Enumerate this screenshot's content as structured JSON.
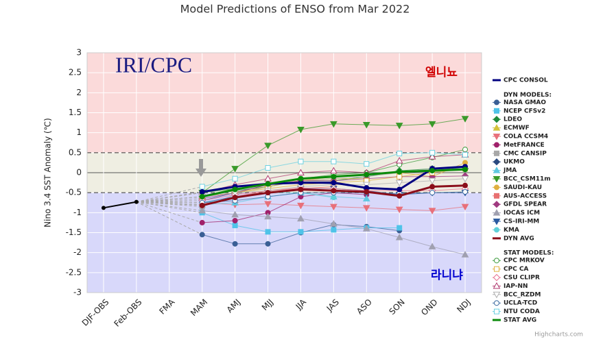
{
  "chart_data": {
    "type": "line",
    "title": "Model Predictions of ENSO from Mar 2022",
    "y_label": "Nino 3.4 SST Anomaly (℃)",
    "annotations": [
      "IRI/CPC",
      "엘니뇨",
      "라니냐"
    ],
    "credit": "Highcharts.com",
    "legend_headers": [
      "DYN MODELS:",
      "STAT MODELS:"
    ],
    "legend": "right",
    "grid": true,
    "thresholds": [
      0.5,
      -0.5
    ],
    "band_colors": [
      "#fbdada",
      "#efeee2",
      "#d8d8fa"
    ],
    "categories": [
      "DJF-OBS",
      "Feb-OBS",
      "FMA",
      "MAM",
      "AMJ",
      "MJJ",
      "JJA",
      "JAS",
      "ASO",
      "SON",
      "OND",
      "NDJ"
    ],
    "ylim": [
      -3,
      3
    ],
    "yticks": [
      -3,
      -2.5,
      -2,
      -1.5,
      -1,
      -0.5,
      0,
      0.5,
      1,
      1.5,
      2,
      2.5,
      3
    ],
    "observed": {
      "color": "#000000",
      "values": [
        -0.88,
        -0.73,
        null,
        null,
        null,
        null,
        null,
        null,
        null,
        null,
        null,
        null
      ]
    },
    "series": [
      {
        "name": "CPC CONSOL",
        "color": "#000080",
        "width": 3,
        "marker": "circle",
        "values": [
          null,
          null,
          null,
          -0.48,
          -0.35,
          -0.28,
          -0.25,
          -0.25,
          -0.38,
          -0.42,
          0.1,
          0.15
        ]
      },
      {
        "name": "NASA GMAO",
        "color": "#3a5f95",
        "marker": "circle",
        "values": [
          null,
          null,
          null,
          -1.55,
          -1.78,
          -1.78,
          -1.5,
          -1.3,
          -1.35,
          -1.45,
          null,
          null
        ]
      },
      {
        "name": "NCEP CFSv2",
        "color": "#4fc3e8",
        "marker": "square",
        "values": [
          null,
          null,
          null,
          -1.0,
          -1.32,
          -1.48,
          -1.48,
          -1.43,
          -1.38,
          -1.38,
          null,
          null
        ]
      },
      {
        "name": "LDEO",
        "color": "#1e8a3a",
        "marker": "diamond",
        "values": [
          null,
          null,
          null,
          -0.6,
          -0.45,
          -0.35,
          -0.2,
          -0.2,
          -0.1,
          0.05,
          0.1,
          0.1
        ]
      },
      {
        "name": "ECMWF",
        "color": "#d4c23a",
        "marker": "triangle",
        "values": [
          null,
          null,
          null,
          -0.6,
          -0.4,
          -0.3,
          -0.2,
          -0.15,
          -0.15,
          null,
          null,
          null
        ]
      },
      {
        "name": "COLA CCSM4",
        "color": "#e8707a",
        "marker": "triangle-down",
        "values": [
          null,
          null,
          null,
          -0.75,
          -0.8,
          -0.78,
          -0.82,
          -0.85,
          -0.88,
          -0.92,
          -0.95,
          -0.85
        ]
      },
      {
        "name": "MetFRANCE",
        "color": "#a0206a",
        "marker": "circle",
        "values": [
          null,
          null,
          null,
          -1.25,
          -1.2,
          -1.0,
          -0.6,
          -0.5,
          -0.55,
          null,
          null,
          null
        ]
      },
      {
        "name": "CMC CANSIP",
        "color": "#a8a8a8",
        "marker": "square",
        "values": [
          null,
          null,
          null,
          -0.85,
          -0.55,
          -0.35,
          -0.2,
          -0.15,
          -0.1,
          0.0,
          0.1,
          null
        ]
      },
      {
        "name": "UKMO",
        "color": "#2a4a80",
        "marker": "diamond",
        "values": [
          null,
          null,
          null,
          -0.7,
          -0.5,
          -0.3,
          -0.25,
          -0.28,
          null,
          null,
          null,
          null
        ]
      },
      {
        "name": "JMA",
        "color": "#5fc8e0",
        "marker": "triangle",
        "values": [
          null,
          null,
          null,
          -0.8,
          -0.75,
          -0.6,
          -0.5,
          -0.6,
          -0.65,
          null,
          null,
          null
        ]
      },
      {
        "name": "BCC_CSM11m",
        "color": "#3a9a2a",
        "marker": "triangle-down",
        "values": [
          null,
          null,
          null,
          -0.5,
          0.1,
          0.68,
          1.08,
          1.22,
          1.2,
          1.18,
          1.22,
          1.35
        ]
      },
      {
        "name": "SAUDI-KAU",
        "color": "#e0b040",
        "marker": "circle",
        "values": [
          null,
          null,
          null,
          -0.6,
          -0.5,
          -0.35,
          -0.2,
          -0.1,
          -0.05,
          0.0,
          -0.1,
          0.25
        ]
      },
      {
        "name": "AUS-ACCESS",
        "color": "#e87070",
        "marker": "square",
        "values": [
          null,
          null,
          null,
          -0.8,
          -0.6,
          -0.45,
          -0.4,
          -0.35,
          null,
          null,
          null,
          null
        ]
      },
      {
        "name": "GFDL SPEAR",
        "color": "#a03a80",
        "marker": "diamond",
        "values": [
          null,
          null,
          null,
          -0.65,
          -0.5,
          -0.3,
          -0.2,
          -0.2,
          -0.15,
          -0.1,
          -0.1,
          -0.08
        ]
      },
      {
        "name": "IOCAS ICM",
        "color": "#a0a0b0",
        "marker": "triangle",
        "values": [
          null,
          null,
          null,
          -0.95,
          -1.05,
          -1.1,
          -1.15,
          -1.28,
          -1.4,
          -1.62,
          -1.85,
          -2.05
        ]
      },
      {
        "name": "CS-IRI-MM",
        "color": "#2a5aa0",
        "marker": "triangle-down",
        "values": [
          null,
          null,
          null,
          -0.75,
          -0.6,
          -0.5,
          -0.4,
          -0.4,
          -0.45,
          -0.55,
          -0.5,
          -0.5
        ]
      },
      {
        "name": "KMA",
        "color": "#5fd0d8",
        "marker": "circle",
        "values": [
          null,
          null,
          null,
          -0.75,
          -0.65,
          -0.5,
          -0.5,
          -0.62,
          null,
          null,
          null,
          null
        ]
      },
      {
        "name": "DYN AVG",
        "color": "#8b0e1a",
        "width": 3,
        "marker": "circle",
        "values": [
          null,
          null,
          null,
          -0.82,
          -0.62,
          -0.5,
          -0.42,
          -0.45,
          -0.48,
          -0.58,
          -0.35,
          -0.32
        ]
      },
      {
        "name": "CPC MRKOV",
        "color": "#3a9a3a",
        "marker": "circle",
        "hollow": true,
        "values": [
          null,
          null,
          null,
          -0.5,
          -0.4,
          -0.3,
          -0.15,
          -0.05,
          0.0,
          0.2,
          0.38,
          0.58
        ]
      },
      {
        "name": "CPC CA",
        "color": "#e0b040",
        "marker": "square",
        "hollow": true,
        "values": [
          null,
          null,
          null,
          -0.6,
          -0.5,
          -0.4,
          -0.3,
          -0.25,
          -0.2,
          -0.1,
          0.0,
          0.1
        ]
      },
      {
        "name": "CSU CLIPR",
        "color": "#e87090",
        "marker": "diamond",
        "hollow": true,
        "values": [
          null,
          null,
          null,
          -0.7,
          -0.55,
          -0.45,
          -0.38,
          -0.4,
          -0.45,
          -0.45,
          -0.45,
          -0.4
        ]
      },
      {
        "name": "IAP-NN",
        "color": "#b03a70",
        "marker": "triangle",
        "hollow": true,
        "values": [
          null,
          null,
          null,
          -0.5,
          -0.3,
          -0.15,
          0.0,
          0.05,
          0.0,
          0.3,
          0.4,
          0.45
        ]
      },
      {
        "name": "BCC_RZDM",
        "color": "#b0b0b0",
        "marker": "triangle-down",
        "hollow": true,
        "values": [
          null,
          null,
          null,
          -0.6,
          -0.5,
          -0.45,
          -0.35,
          -0.3,
          -0.3,
          -0.25,
          -0.2,
          -0.15
        ]
      },
      {
        "name": "UCLA-TCD",
        "color": "#3a6aa0",
        "marker": "circle",
        "hollow": true,
        "values": [
          null,
          null,
          null,
          -0.75,
          -0.7,
          -0.6,
          -0.5,
          -0.5,
          -0.5,
          -0.52,
          -0.5,
          -0.48
        ]
      },
      {
        "name": "NTU CODA",
        "color": "#6ad0e0",
        "marker": "square",
        "hollow": true,
        "values": [
          null,
          null,
          null,
          -0.35,
          -0.15,
          0.12,
          0.28,
          0.28,
          0.22,
          0.48,
          0.5,
          0.45
        ]
      },
      {
        "name": "STAT AVG",
        "color": "#0a8a0a",
        "width": 3,
        "marker": "circle",
        "values": [
          null,
          null,
          null,
          -0.6,
          -0.42,
          -0.28,
          -0.15,
          -0.1,
          -0.05,
          0.02,
          0.05,
          0.08
        ]
      }
    ]
  }
}
